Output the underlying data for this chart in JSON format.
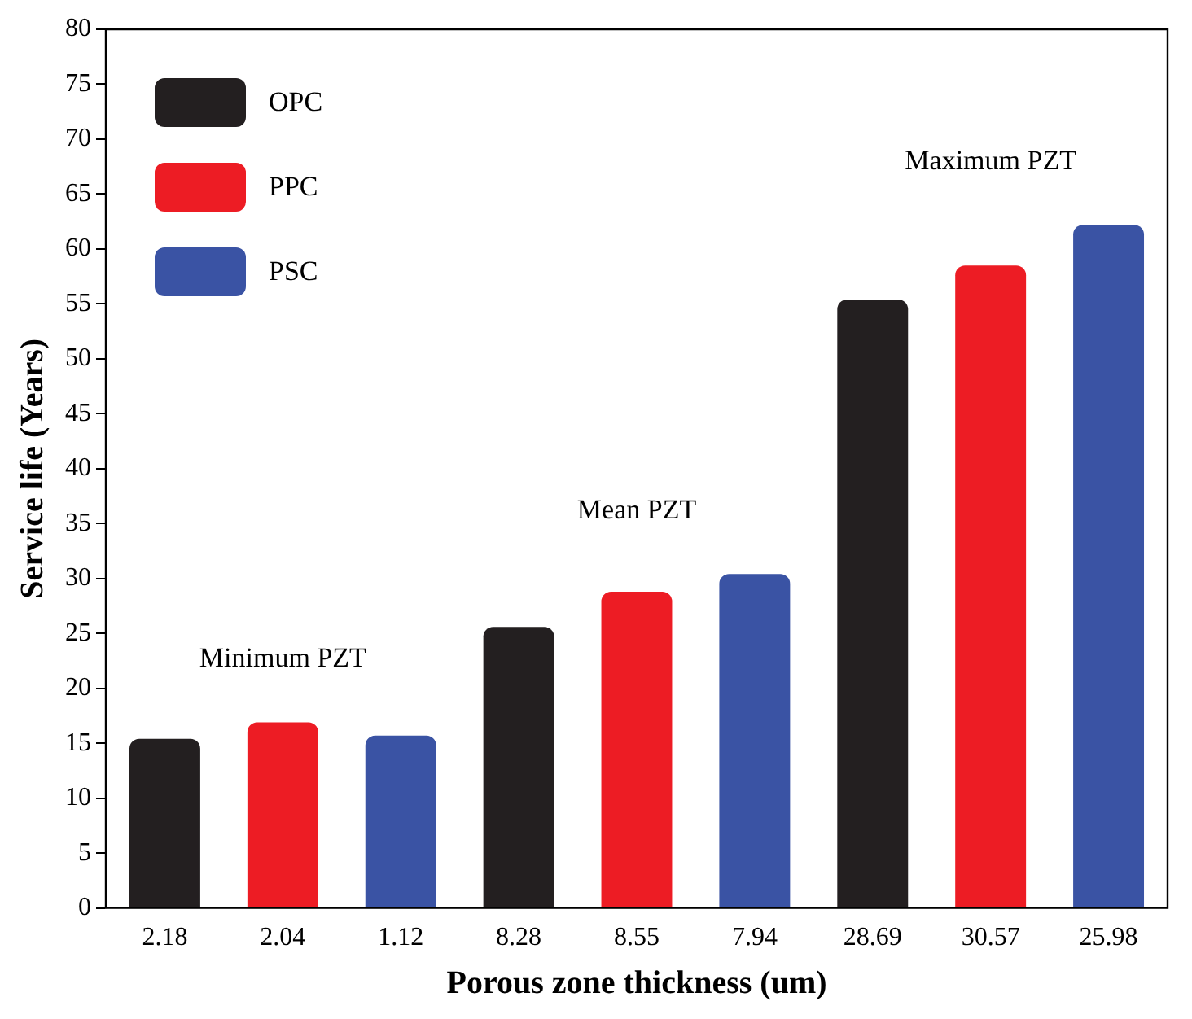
{
  "chart_data": {
    "type": "bar",
    "xlabel": "Porous zone thickness (um)",
    "ylabel": "Service life (Years)",
    "categories": [
      "2.18",
      "2.04",
      "1.12",
      "8.28",
      "8.55",
      "7.94",
      "28.69",
      "30.57",
      "25.98"
    ],
    "series": [
      {
        "name": "OPC",
        "color": "#231f20",
        "values": [
          15.4,
          null,
          null,
          25.6,
          null,
          null,
          55.4,
          null,
          null
        ]
      },
      {
        "name": "PPC",
        "color": "#ed1c24",
        "values": [
          null,
          16.9,
          null,
          null,
          28.8,
          null,
          null,
          58.5,
          null
        ]
      },
      {
        "name": "PSC",
        "color": "#3a53a4",
        "values": [
          null,
          null,
          15.7,
          null,
          null,
          30.4,
          null,
          null,
          62.2
        ]
      }
    ],
    "ylim": [
      0,
      80
    ],
    "yticks": [
      0,
      5,
      10,
      15,
      20,
      25,
      30,
      35,
      40,
      45,
      50,
      55,
      60,
      65,
      70,
      75,
      80
    ],
    "grid": false,
    "legend": "top left",
    "annotations": [
      "Minimum PZT",
      "Mean PZT",
      "Maximum PZT"
    ]
  }
}
